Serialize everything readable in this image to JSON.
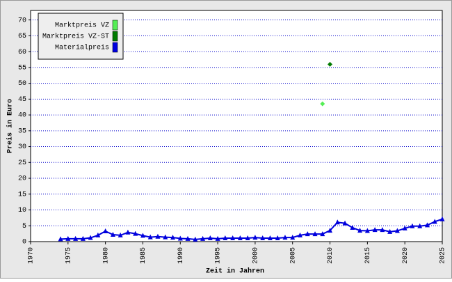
{
  "chart_data": {
    "type": "line",
    "xlabel": "Zeit in Jahren",
    "ylabel": "Preis in Euro",
    "xlim": [
      1970,
      2025
    ],
    "ylim": [
      0,
      73
    ],
    "xticks": [
      1970,
      1975,
      1980,
      1985,
      1990,
      1995,
      2000,
      2005,
      2010,
      2015,
      2020,
      2025
    ],
    "yticks": [
      0,
      5,
      10,
      15,
      20,
      25,
      30,
      35,
      40,
      45,
      50,
      55,
      60,
      65,
      70
    ],
    "grid": true,
    "legend": "top-left",
    "series": [
      {
        "name": "Marktpreis VZ",
        "color": "#55ee55",
        "marker": "diamond",
        "x": [
          2009
        ],
        "values": [
          43.5
        ]
      },
      {
        "name": "Marktpreis VZ-ST",
        "color": "#007a00",
        "marker": "diamond",
        "x": [
          2010
        ],
        "values": [
          56
        ]
      },
      {
        "name": "Materialpreis",
        "color": "#0000dd",
        "marker": "triangle",
        "x": [
          1974,
          1975,
          1976,
          1977,
          1978,
          1979,
          1980,
          1981,
          1982,
          1983,
          1984,
          1985,
          1986,
          1987,
          1988,
          1989,
          1990,
          1991,
          1992,
          1993,
          1994,
          1995,
          1996,
          1997,
          1998,
          1999,
          2000,
          2001,
          2002,
          2003,
          2004,
          2005,
          2006,
          2007,
          2008,
          2009,
          2010,
          2011,
          2012,
          2013,
          2014,
          2015,
          2016,
          2017,
          2018,
          2019,
          2020,
          2021,
          2022,
          2023,
          2024,
          2025
        ],
        "values": [
          0.8,
          0.9,
          0.9,
          0.9,
          1.2,
          2.0,
          3.3,
          2.2,
          2.0,
          2.9,
          2.5,
          1.9,
          1.4,
          1.6,
          1.4,
          1.3,
          1.0,
          0.9,
          0.7,
          0.9,
          1.1,
          0.9,
          1.1,
          1.1,
          1.1,
          1.1,
          1.3,
          1.1,
          1.1,
          1.1,
          1.3,
          1.3,
          2.0,
          2.4,
          2.4,
          2.4,
          3.5,
          6.1,
          5.8,
          4.4,
          3.5,
          3.4,
          3.7,
          3.7,
          3.1,
          3.4,
          4.2,
          4.9,
          4.9,
          5.2,
          6.3,
          7.1
        ]
      }
    ]
  }
}
